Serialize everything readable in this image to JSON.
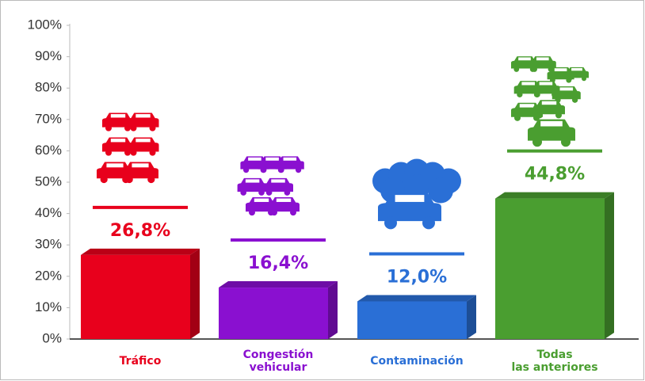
{
  "chart_data": {
    "type": "bar",
    "categories": [
      "Tráfico",
      "Congestión\nvehicular",
      "Contaminación",
      "Todas\nlas anteriores"
    ],
    "values": [
      26.8,
      16.4,
      12.0,
      44.8
    ],
    "value_labels": [
      "26,8%",
      "16,4%",
      "12,0%",
      "44,8%"
    ],
    "colors": [
      "#e8001c",
      "#8a10d0",
      "#2a6fd6",
      "#4a9e30"
    ],
    "ylim": [
      0,
      100
    ],
    "yticks": [
      {
        "value": 0,
        "label": "0%"
      },
      {
        "value": 10,
        "label": "10%"
      },
      {
        "value": 20,
        "label": "20%"
      },
      {
        "value": 30,
        "label": "30%"
      },
      {
        "value": 40,
        "label": "40%"
      },
      {
        "value": 50,
        "label": "50%"
      },
      {
        "value": 60,
        "label": "60%"
      },
      {
        "value": 70,
        "label": "70%"
      },
      {
        "value": 80,
        "label": "80%"
      },
      {
        "value": 90,
        "label": "90%"
      },
      {
        "value": 100,
        "label": "100%"
      }
    ],
    "grid": false
  }
}
